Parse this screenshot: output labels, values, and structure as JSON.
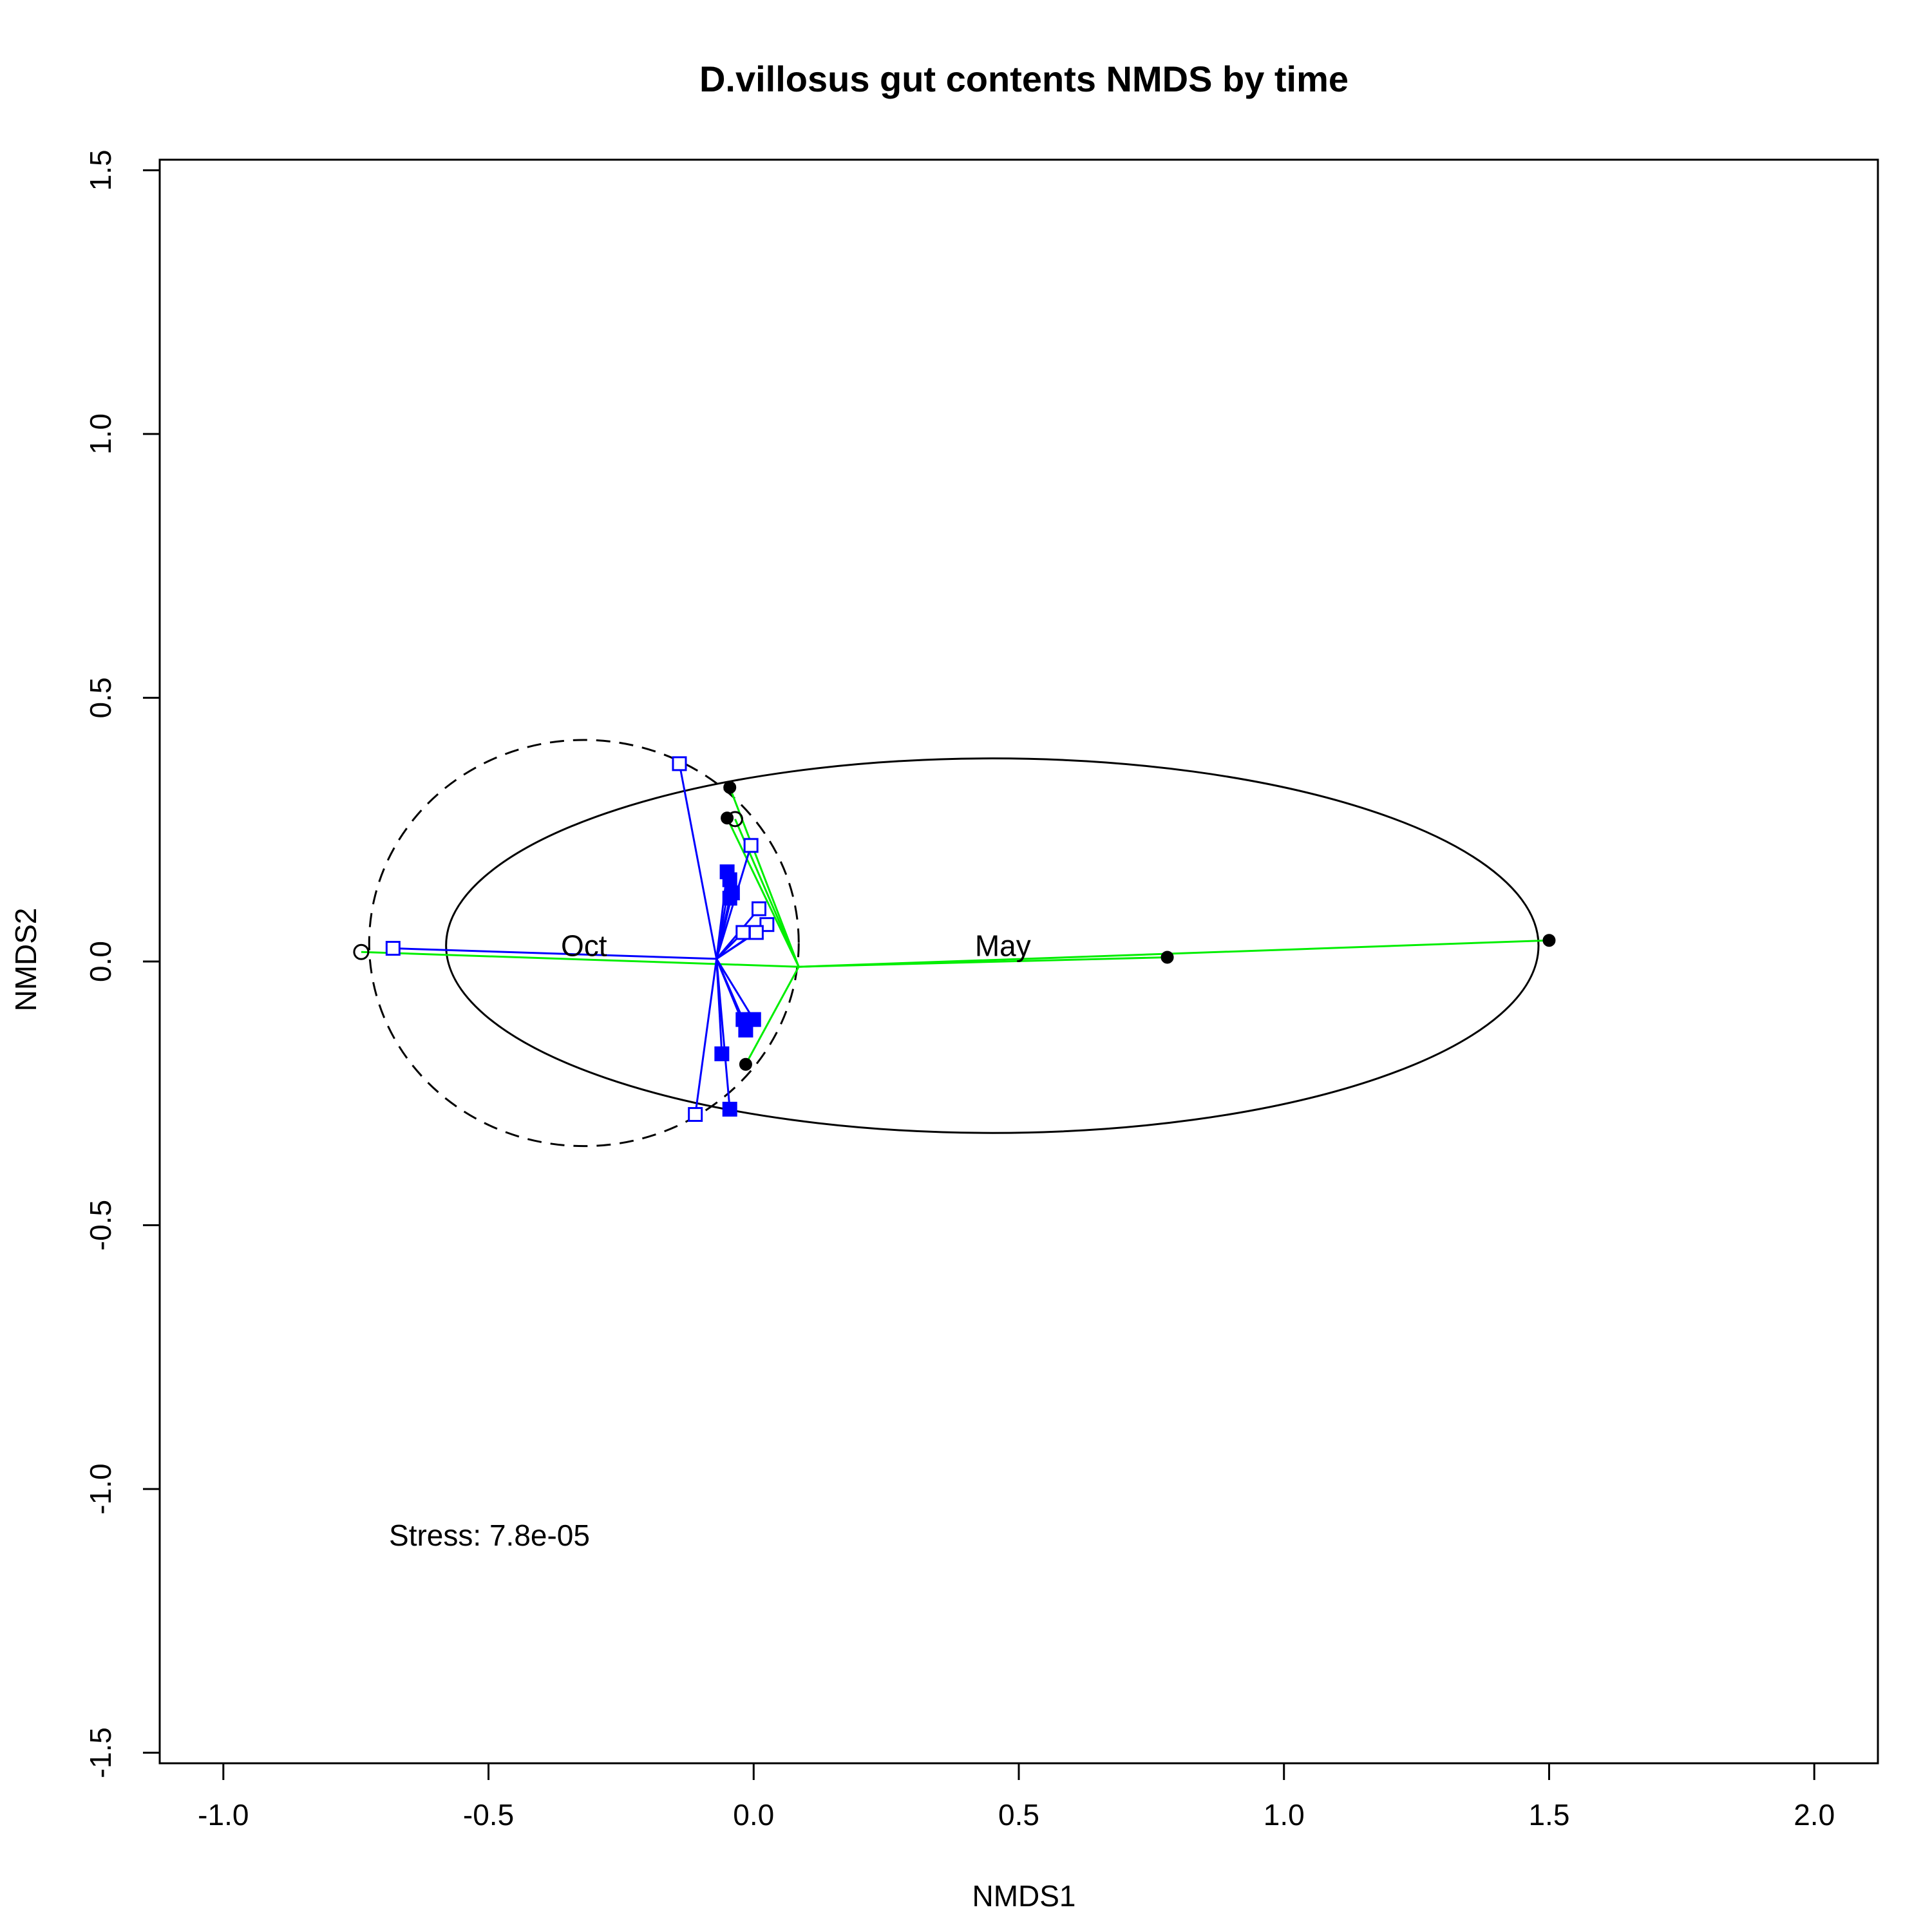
{
  "chart_data": {
    "type": "scatter",
    "title": "D.villosus gut contents NMDS by time",
    "xlabel": "NMDS1",
    "ylabel": "NMDS2",
    "xlim": [
      -1.12,
      2.12
    ],
    "ylim": [
      -1.52,
      1.52
    ],
    "x_ticks": [
      -1.0,
      -0.5,
      0.0,
      0.5,
      1.0,
      1.5,
      2.0
    ],
    "x_tick_labels": [
      "-1.0",
      "-0.5",
      "0.0",
      "0.5",
      "1.0",
      "1.5",
      "2.0"
    ],
    "y_ticks": [
      -1.5,
      -1.0,
      -0.5,
      0.0,
      0.5,
      1.0,
      1.5
    ],
    "y_tick_labels": [
      "-1.5",
      "-1.0",
      "-0.5",
      "0.0",
      "0.5",
      "1.0",
      "1.5"
    ],
    "grid": false,
    "stress_text": "Stress: 7.8e-05",
    "colors": {
      "oct_spider": "#0000ff",
      "may_spider": "#00ee00",
      "oct_points": "#0000ff",
      "may_points": "#000000",
      "ellipse": "#000000"
    },
    "groups": [
      {
        "name": "Oct",
        "label": "Oct",
        "label_pos": [
          -0.32,
          0.03
        ],
        "centroid": [
          -0.07,
          0.005
        ],
        "ellipse": {
          "center": [
            -0.32,
            0.035
          ],
          "rx": 0.405,
          "ry": 0.385,
          "angle": 0,
          "dashed": true
        },
        "points_open": [
          [
            -0.68,
            0.025
          ],
          [
            -0.14,
            0.375
          ],
          [
            -0.005,
            0.22
          ],
          [
            0.01,
            0.1
          ],
          [
            0.025,
            0.07
          ],
          [
            -0.02,
            0.055
          ],
          [
            0.005,
            0.055
          ],
          [
            -0.11,
            -0.29
          ]
        ],
        "points_filled": [
          [
            -0.05,
            0.17
          ],
          [
            -0.045,
            0.155
          ],
          [
            -0.04,
            0.13
          ],
          [
            -0.045,
            0.12
          ],
          [
            -0.02,
            -0.11
          ],
          [
            -0.015,
            -0.13
          ],
          [
            0.0,
            -0.11
          ],
          [
            -0.06,
            -0.175
          ],
          [
            -0.045,
            -0.28
          ]
        ]
      },
      {
        "name": "May",
        "label": "May",
        "label_pos": [
          0.47,
          0.03
        ],
        "centroid": [
          0.085,
          -0.01
        ],
        "ellipse": {
          "center": [
            0.45,
            0.03
          ],
          "rx": 1.03,
          "ry": 0.355,
          "angle": 0,
          "dashed": false
        },
        "points_open": [
          [
            -0.74,
            0.018
          ],
          [
            -0.035,
            0.27
          ]
        ],
        "points_filled": [
          [
            -0.045,
            0.33
          ],
          [
            -0.05,
            0.272
          ],
          [
            -0.015,
            -0.195
          ],
          [
            0.78,
            0.008
          ],
          [
            1.5,
            0.04
          ]
        ]
      }
    ]
  }
}
